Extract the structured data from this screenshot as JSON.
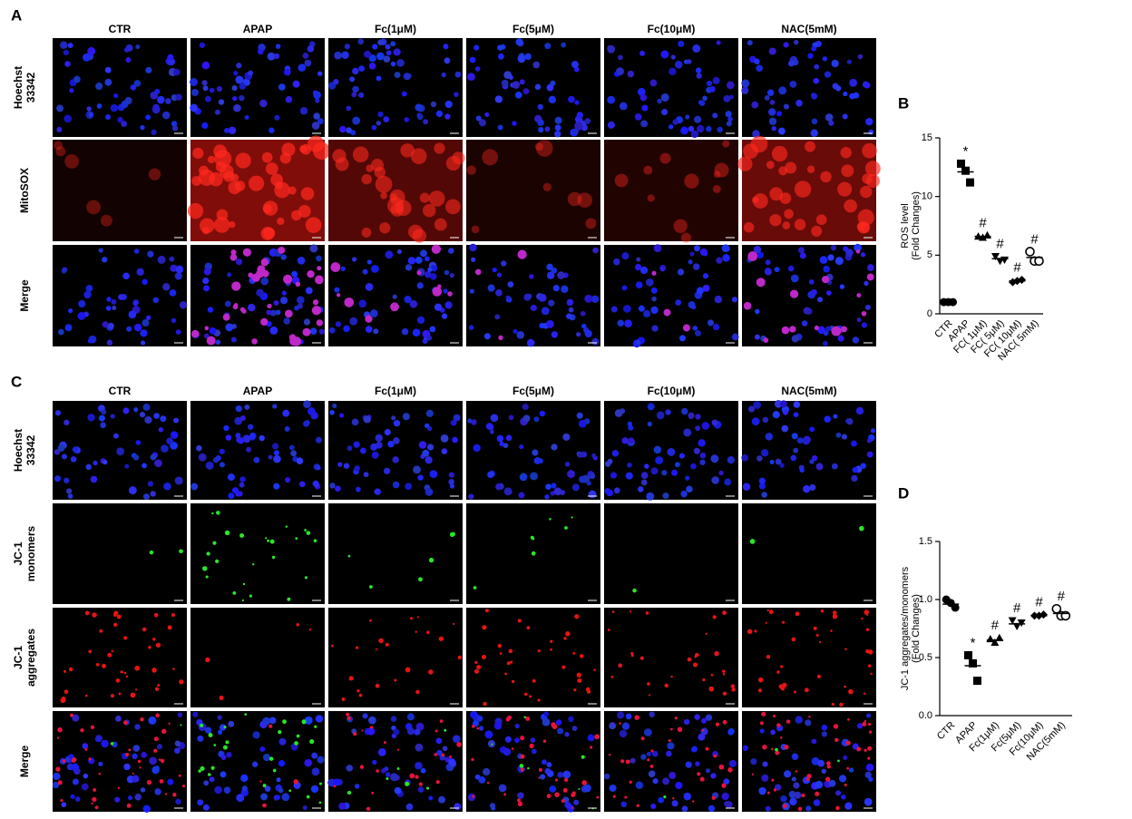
{
  "panels": [
    {
      "label": "A",
      "columns": [
        "CTR",
        "APAP",
        "Fc(1μM)",
        "Fc(5μM)",
        "Fc(10μM)",
        "NAC(5mM)"
      ],
      "rows": [
        [
          "Hoechst",
          "33342"
        ],
        [
          "MitoSOX"
        ],
        [
          "Merge"
        ]
      ]
    },
    {
      "label": "C",
      "columns": [
        "CTR",
        "APAP",
        "Fc(1μM)",
        "Fc(5μM)",
        "Fc(10μM)",
        "NAC(5mM)"
      ],
      "rows": [
        [
          "Hoechst",
          "33342"
        ],
        [
          "JC-1",
          "monomers"
        ],
        [
          "JC-1",
          "aggregates"
        ],
        [
          "Merge"
        ]
      ]
    }
  ],
  "chart_data": [
    {
      "type": "dot",
      "label": "B",
      "ylabel": [
        "ROS level",
        "(Fold Changes)"
      ],
      "categories": [
        "CTR",
        "APAP",
        "FC( 1μM)",
        "FC( 5μM)",
        "FC( 10μM)",
        "NAC( 5mM)"
      ],
      "points": [
        [
          1.0,
          1.0,
          1.0
        ],
        [
          12.8,
          12.2,
          11.2
        ],
        [
          6.6,
          6.5,
          6.7
        ],
        [
          4.9,
          4.5,
          4.6
        ],
        [
          2.7,
          2.8,
          2.9
        ],
        [
          5.3,
          4.5,
          4.5
        ]
      ],
      "means": [
        1.0,
        12.1,
        6.6,
        4.7,
        2.8,
        4.8
      ],
      "annotations": [
        null,
        "*",
        "#",
        "#",
        "#",
        "#"
      ],
      "markers": [
        "circle",
        "square",
        "triangle",
        "triangle-down",
        "diamond",
        "circle-open"
      ],
      "color": "#000000",
      "ylim": [
        0,
        15
      ],
      "yticks": [
        0,
        5,
        10,
        15
      ]
    },
    {
      "type": "dot",
      "label": "D",
      "ylabel": [
        "JC-1 aggregates/monomers",
        "(Fold Changes)"
      ],
      "categories": [
        "CTR",
        "APAP",
        "Fc(1μM)",
        "Fc(5μM)",
        "Fc(10μM)",
        "NAC(5mM)"
      ],
      "points": [
        [
          1.0,
          0.97,
          0.93
        ],
        [
          0.52,
          0.45,
          0.3
        ],
        [
          0.66,
          0.63,
          0.67
        ],
        [
          0.82,
          0.77,
          0.8
        ],
        [
          0.86,
          0.86,
          0.87
        ],
        [
          0.92,
          0.86,
          0.86
        ]
      ],
      "means": [
        0.96,
        0.43,
        0.65,
        0.79,
        0.86,
        0.88
      ],
      "annotations": [
        null,
        "*",
        "#",
        "#",
        "#",
        "#"
      ],
      "markers": [
        "circle",
        "square",
        "triangle",
        "triangle-down",
        "diamond",
        "circle-open"
      ],
      "color": "#000000",
      "ylim": [
        0,
        1.5
      ],
      "yticks": [
        {
          "value": 0,
          "label": "0.0"
        },
        {
          "value": 0.5,
          "label": "0.5"
        },
        {
          "value": 1,
          "label": "1.0"
        },
        {
          "value": 1.5,
          "label": "1.5"
        }
      ]
    }
  ]
}
